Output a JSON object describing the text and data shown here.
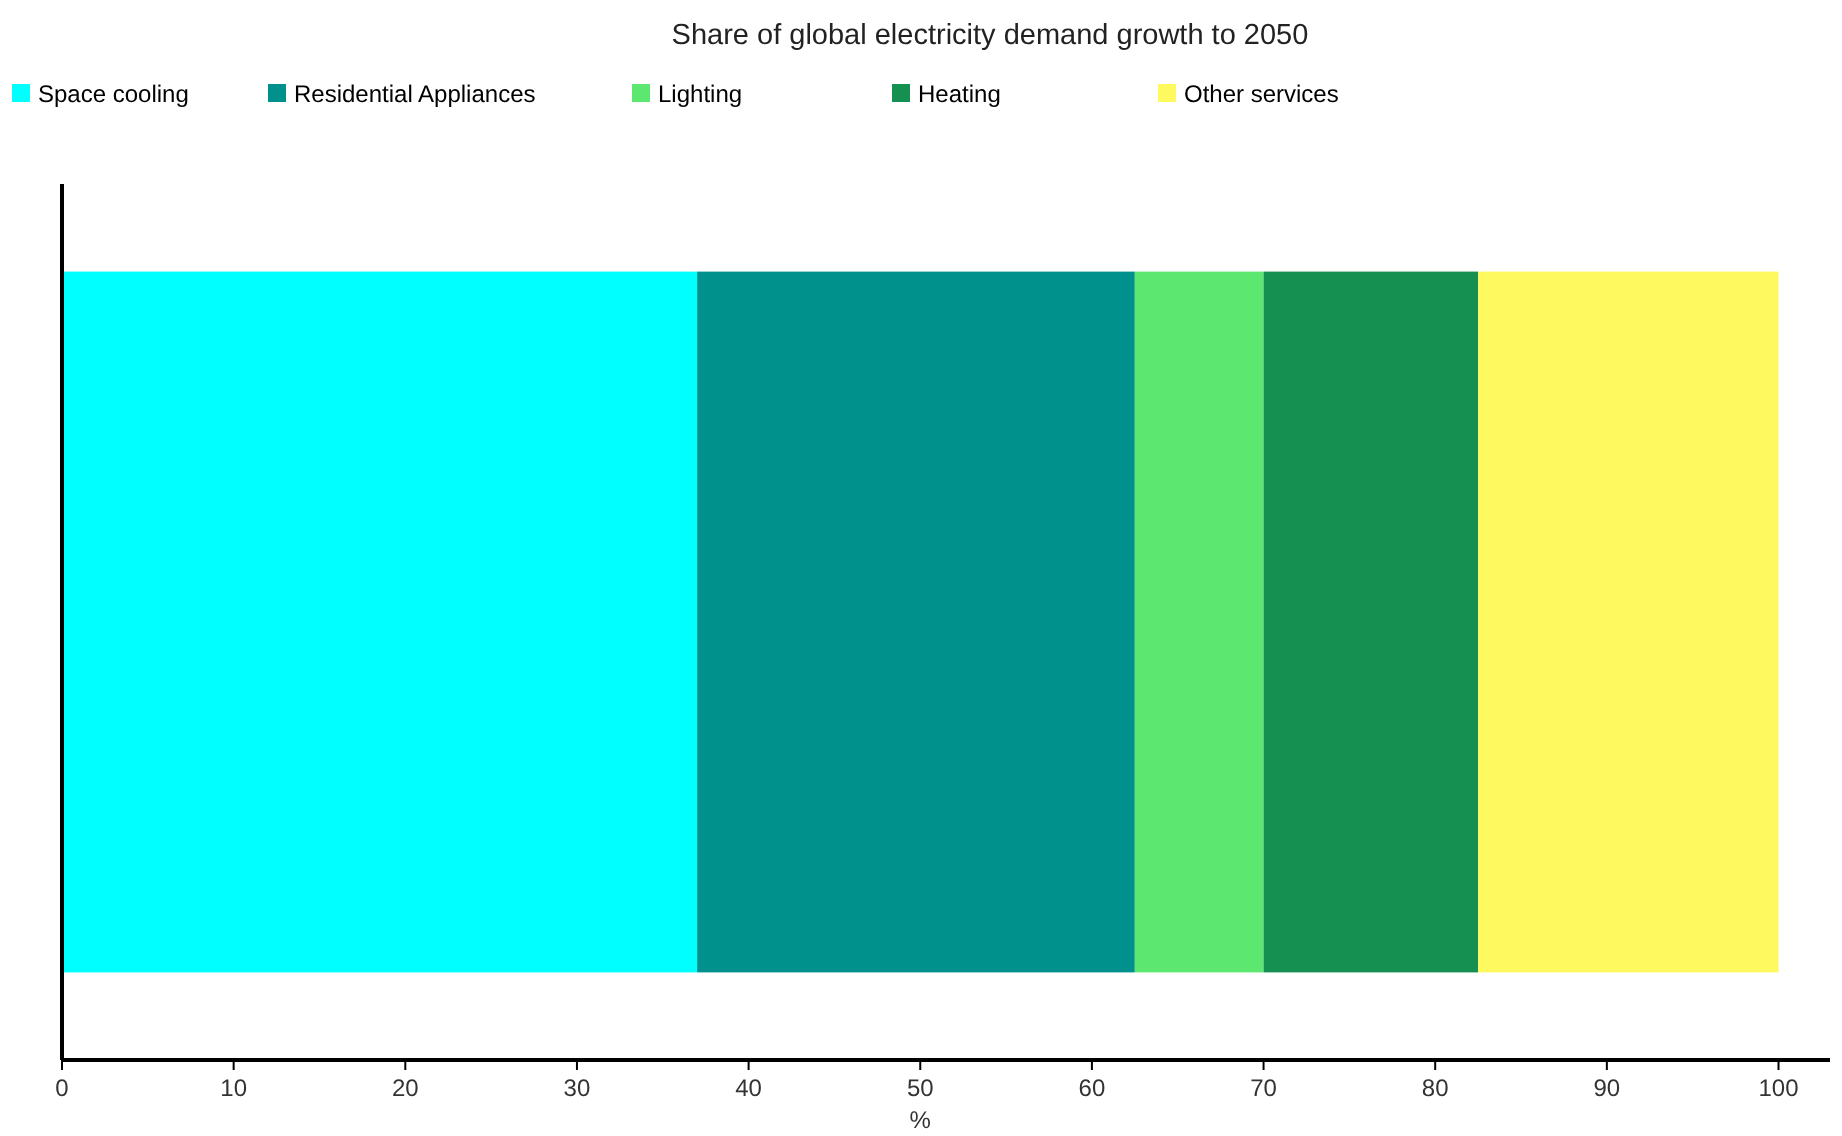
{
  "chart_data": {
    "type": "bar",
    "orientation": "horizontal",
    "stacked": true,
    "title": "Share of global electricity demand growth to 2050",
    "xlabel": "%",
    "categories": [
      null
    ],
    "series": [
      {
        "name": "Space cooling",
        "color": "#00ffff",
        "values": [
          37
        ]
      },
      {
        "name": "Residential Appliances",
        "color": "#00918c",
        "values": [
          25.5
        ]
      },
      {
        "name": "Lighting",
        "color": "#5ce870",
        "values": [
          7.5
        ]
      },
      {
        "name": "Heating",
        "color": "#169050",
        "values": [
          12.5
        ]
      },
      {
        "name": "Other services",
        "color": "#fff960",
        "values": [
          17.5
        ]
      }
    ],
    "xlim": [
      0,
      103
    ],
    "xticks": [
      0,
      10,
      20,
      30,
      40,
      50,
      60,
      70,
      80,
      90,
      100
    ],
    "legend": "top left",
    "grid": false
  }
}
